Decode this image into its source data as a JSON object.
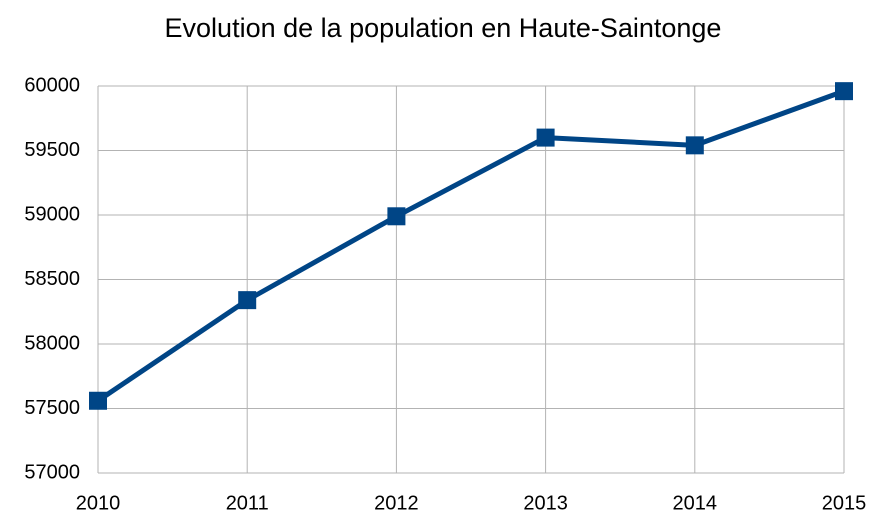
{
  "chart_data": {
    "type": "line",
    "title": "Evolution de la population en Haute-Saintonge",
    "x": [
      2010,
      2011,
      2012,
      2013,
      2014,
      2015
    ],
    "values": [
      57560,
      58340,
      58990,
      59600,
      59540,
      59960
    ],
    "color": "#004586",
    "xlim": [
      2010,
      2015
    ],
    "xticks": [
      2010,
      2011,
      2012,
      2013,
      2014,
      2015
    ],
    "ylim": [
      57000,
      60000
    ],
    "yticks": [
      57000,
      57500,
      58000,
      58500,
      59000,
      59500,
      60000
    ],
    "grid": true,
    "marker": "square"
  }
}
